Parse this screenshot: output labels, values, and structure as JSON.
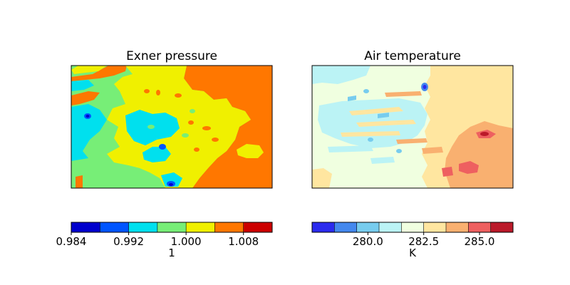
{
  "chart_data": [
    {
      "type": "heatmap",
      "title": "Exner pressure",
      "xlabel": "",
      "ylabel": "",
      "colorbar": {
        "label": "1",
        "levels": [
          0.984,
          0.988,
          0.992,
          0.996,
          1.0,
          1.004,
          1.008,
          1.012
        ],
        "colors": [
          "#0000cd",
          "#0055ff",
          "#00e0ee",
          "#77ee77",
          "#f0f000",
          "#ff7700",
          "#cc0000"
        ],
        "ticks": [
          0.984,
          0.992,
          1.0,
          1.008
        ],
        "tick_labels": [
          "0.984",
          "0.992",
          "1.000",
          "1.008"
        ]
      },
      "dominant_regions": [
        {
          "region": "east half",
          "level_range": [
            1.004,
            1.008
          ],
          "color": "#ff7700"
        },
        {
          "region": "central band",
          "level_range": [
            1.0,
            1.004
          ],
          "color": "#f0f000"
        },
        {
          "region": "west",
          "level_range": [
            0.996,
            1.0
          ],
          "color": "#77ee77"
        },
        {
          "region": "west patches",
          "level_range": [
            0.992,
            0.996
          ],
          "color": "#00e0ee"
        }
      ]
    },
    {
      "type": "heatmap",
      "title": "Air temperature",
      "xlabel": "",
      "ylabel": "",
      "colorbar": {
        "label": "K",
        "levels": [
          277.5,
          278.5,
          279.5,
          280.5,
          281.5,
          282.5,
          283.5,
          284.5,
          285.5,
          286.5
        ],
        "colors": [
          "#2b2bee",
          "#4488ee",
          "#77ccee",
          "#bbf3f5",
          "#f0ffe0",
          "#ffe6a0",
          "#f9b070",
          "#ee6060",
          "#bb1a2a"
        ],
        "ticks": [
          280.0,
          282.5,
          285.0
        ],
        "tick_labels": [
          "280.0",
          "282.5",
          "285.0"
        ]
      },
      "dominant_regions": [
        {
          "region": "west",
          "level_range": [
            281.5,
            282.5
          ],
          "color": "#f0ffe0"
        },
        {
          "region": "northeast",
          "level_range": [
            282.5,
            283.5
          ],
          "color": "#ffe6a0"
        },
        {
          "region": "southeast",
          "level_range": [
            283.5,
            284.5
          ],
          "color": "#f9b070"
        }
      ]
    }
  ]
}
